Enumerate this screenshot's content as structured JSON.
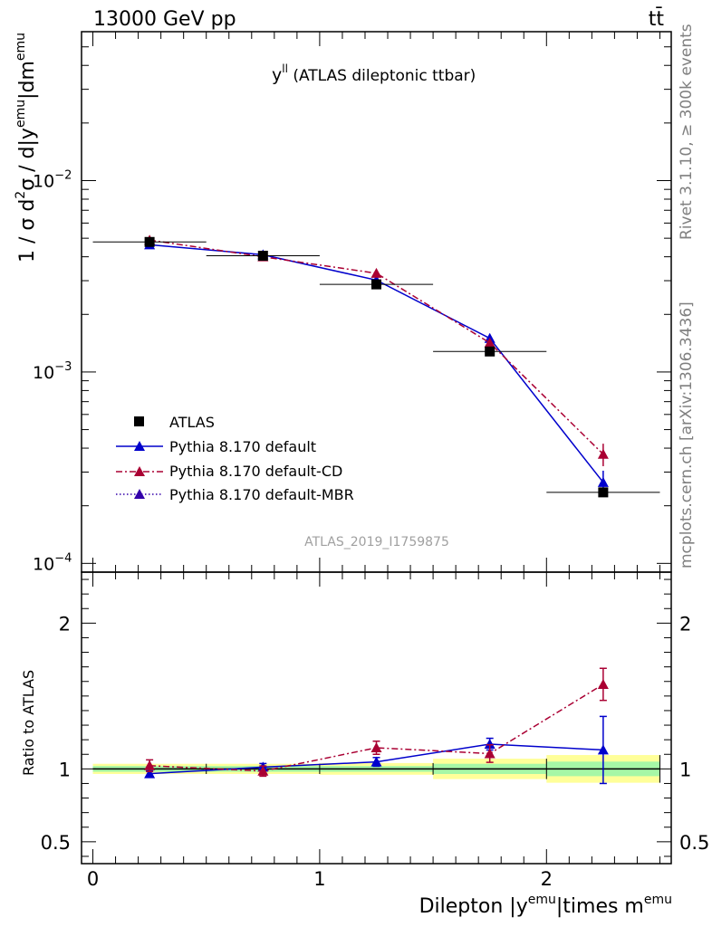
{
  "header": {
    "left": "13000 GeV pp",
    "right": "tt̄"
  },
  "side_texts": {
    "rivet": "Rivet 3.1.10, ≥ 300k events",
    "mcplots": "mcplots.cern.ch [arXiv:1306.3436]"
  },
  "chart_data": [
    {
      "panel": "main",
      "type": "line",
      "title": "y^{ll} (ATLAS dileptonic ttbar)",
      "title_main": "y",
      "title_sup": "ll",
      "title_rest": " (ATLAS dileptonic ttbar)",
      "ylabel": "1 / σ d²σ / d|y^emu|dm^emu",
      "ylabel_parts": [
        "1 / σ  d",
        "2",
        "σ / d|y",
        "emu",
        "|dm",
        "emu"
      ],
      "yscale": "log",
      "ylim": [
        9e-05,
        0.06
      ],
      "xlim": [
        -0.05,
        2.55
      ],
      "ytick_labels": [
        {
          "value": 0.01,
          "base": "10",
          "exp": "−2"
        },
        {
          "value": 0.001,
          "base": "10",
          "exp": "−3"
        },
        {
          "value": 0.0001,
          "base": "10",
          "exp": "−4"
        }
      ],
      "watermark": "ATLAS_2019_I1759875",
      "legend": {
        "placement": "bottom-left",
        "entries": [
          "ATLAS",
          "Pythia 8.170 default",
          "Pythia 8.170 default-CD",
          "Pythia 8.170 default-MBR"
        ]
      },
      "data": {
        "name": "ATLAS",
        "x": [
          0.25,
          0.75,
          1.25,
          1.75,
          2.25
        ],
        "y": [
          0.00478,
          0.00405,
          0.00287,
          0.00128,
          0.000235
        ],
        "xerr": 0.25
      },
      "series": [
        {
          "name": "Pythia 8.170 default",
          "color": "#0000cc",
          "style": "solid",
          "x": [
            0.25,
            0.75,
            1.25,
            1.75,
            2.25
          ],
          "y": [
            0.00462,
            0.0041,
            0.00302,
            0.0015,
            0.000265
          ],
          "err": [
            8e-05,
            8e-05,
            8e-05,
            8e-05,
            4e-05
          ]
        },
        {
          "name": "Pythia 8.170 default-CD",
          "color": "#aa0033",
          "style": "dashdot",
          "x": [
            0.25,
            0.75,
            1.25,
            1.75,
            2.25
          ],
          "y": [
            0.00489,
            0.004,
            0.00328,
            0.00142,
            0.000372
          ],
          "err": [
            0.0001,
            0.0001,
            0.00015,
            6e-05,
            5e-05
          ]
        },
        {
          "name": "Pythia 8.170 default-MBR",
          "color": "#3300aa",
          "style": "dotted",
          "x": [],
          "y": [],
          "err": []
        }
      ]
    },
    {
      "panel": "ratio",
      "type": "line",
      "ylabel": "Ratio to ATLAS",
      "xlabel": "Dilepton |y^emu|times m^emu",
      "xlabel_parts": [
        "Dilepton |y",
        "emu",
        "|times m",
        "emu"
      ],
      "ylim": [
        0.35,
        2.35
      ],
      "ytick_labels": [
        {
          "value": 2,
          "label": "2"
        },
        {
          "value": 1,
          "label": "1"
        },
        {
          "value": 0.5,
          "label": "0.5"
        }
      ],
      "xtick_labels": [
        {
          "value": 0,
          "label": "0"
        },
        {
          "value": 1,
          "label": "1"
        },
        {
          "value": 2,
          "label": "2"
        }
      ],
      "bands": [
        {
          "x0": 0.0,
          "x1": 0.5,
          "stat": 0.02,
          "total": 0.035
        },
        {
          "x0": 0.5,
          "x1": 1.0,
          "stat": 0.02,
          "total": 0.035
        },
        {
          "x0": 1.0,
          "x1": 1.5,
          "stat": 0.02,
          "total": 0.04
        },
        {
          "x0": 1.5,
          "x1": 2.0,
          "stat": 0.035,
          "total": 0.07
        },
        {
          "x0": 2.0,
          "x1": 2.5,
          "stat": 0.05,
          "total": 0.095
        }
      ],
      "series": [
        {
          "name": "Pythia 8.170 default",
          "color": "#0000cc",
          "style": "solid",
          "x": [
            0.25,
            0.75,
            1.25,
            1.75,
            2.25
          ],
          "y": [
            0.967,
            1.012,
            1.048,
            1.17,
            1.13
          ],
          "err": [
            0.02,
            0.025,
            0.03,
            0.04,
            0.23
          ]
        },
        {
          "name": "Pythia 8.170 default-CD",
          "color": "#aa0033",
          "style": "dashdot",
          "x": [
            0.25,
            0.75,
            1.25,
            1.75,
            2.25
          ],
          "y": [
            1.022,
            0.985,
            1.145,
            1.105,
            1.58
          ],
          "err": [
            0.04,
            0.035,
            0.045,
            0.06,
            0.11
          ]
        }
      ],
      "colors": {
        "stat": "#a6f7a6",
        "total": "#ffff99"
      }
    }
  ]
}
